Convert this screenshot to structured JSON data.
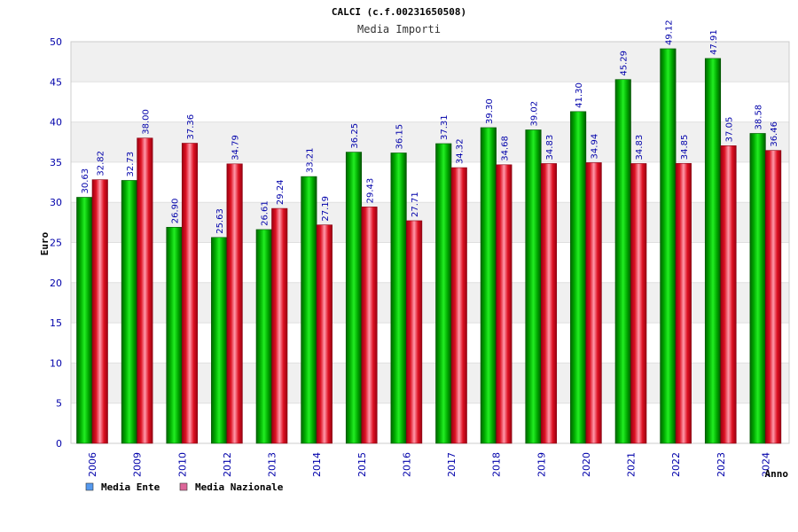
{
  "chart_data": {
    "type": "bar",
    "title": "CALCI (c.f.00231650508)",
    "subtitle": "Media Importi",
    "xlabel": "Anno",
    "ylabel": "Euro",
    "ylim": [
      0,
      50
    ],
    "yticks": [
      0,
      5,
      10,
      15,
      20,
      25,
      30,
      35,
      40,
      45,
      50
    ],
    "grid": true,
    "legend_position": "bottom-left",
    "categories": [
      "2006",
      "2009",
      "2010",
      "2012",
      "2013",
      "2014",
      "2015",
      "2016",
      "2017",
      "2018",
      "2019",
      "2020",
      "2021",
      "2022",
      "2023",
      "2024"
    ],
    "series": [
      {
        "name": "Media Ente",
        "color": "#00bb00",
        "legend_color": "#5599ee",
        "values": [
          30.63,
          32.73,
          26.9,
          25.63,
          26.61,
          33.21,
          36.25,
          36.15,
          37.31,
          39.3,
          39.02,
          41.3,
          45.29,
          49.12,
          47.91,
          38.58
        ],
        "labels": [
          "30.63",
          "32.73",
          "26.90",
          "25.63",
          "26.61",
          "33.21",
          "36.25",
          "36.15",
          "37.31",
          "39.30",
          "39.02",
          "41.30",
          "45.29",
          "49.12",
          "47.91",
          "38.58"
        ]
      },
      {
        "name": "Media Nazionale",
        "color": "#ee2233",
        "legend_color": "#dd6699",
        "values": [
          32.82,
          38.0,
          37.36,
          34.79,
          29.24,
          27.19,
          29.43,
          27.71,
          34.32,
          34.68,
          34.83,
          34.94,
          34.83,
          34.85,
          37.05,
          36.46
        ],
        "labels": [
          "32.82",
          "38.00",
          "37.36",
          "34.79",
          "29.24",
          "27.19",
          "29.43",
          "27.71",
          "34.32",
          "34.68",
          "34.83",
          "34.94",
          "34.83",
          "34.85",
          "37.05",
          "36.46"
        ]
      }
    ]
  }
}
